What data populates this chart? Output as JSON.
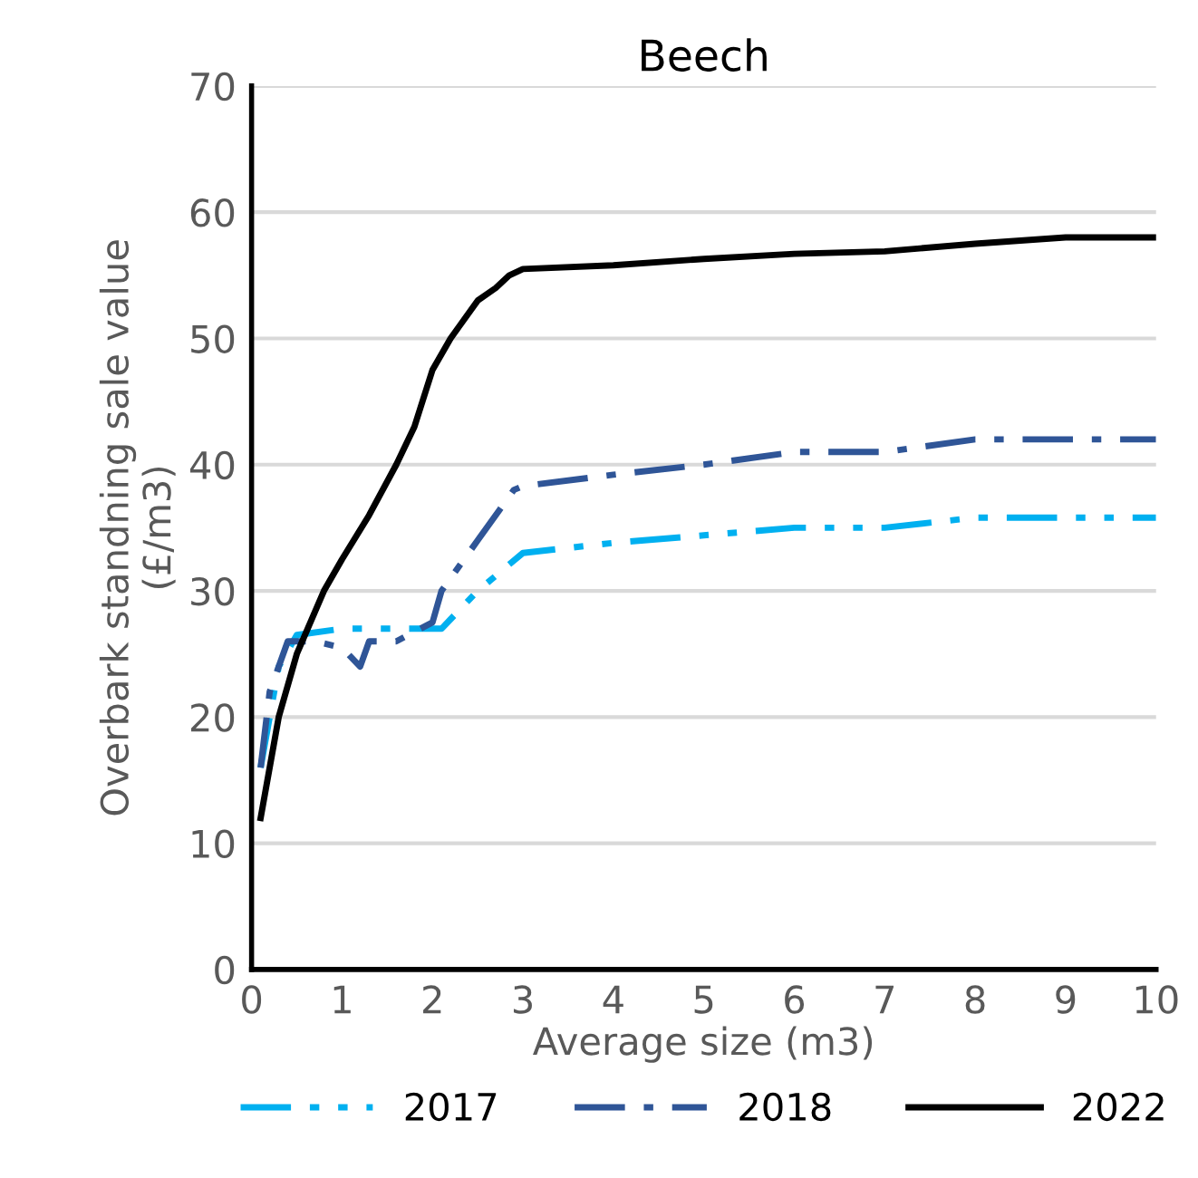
{
  "chart_data": {
    "type": "line",
    "title": "Beech",
    "xlabel": "Average size (m3)",
    "ylabel": "Overbark standning sale value\n(£/m3)",
    "xlim": [
      0,
      10
    ],
    "xticks": [
      0,
      1,
      2,
      3,
      4,
      5,
      6,
      7,
      8,
      9,
      10
    ],
    "ylim": [
      0,
      70
    ],
    "yticks": [
      0,
      10,
      20,
      30,
      40,
      50,
      60,
      70
    ],
    "grid": "y",
    "legend": "bottom",
    "marker": "none",
    "series": [
      {
        "name": "2017",
        "color": "#00b0f0",
        "line_style": "dashdotdot",
        "x": [
          0.1,
          0.3,
          0.5,
          1,
          1.5,
          2,
          2.1,
          2.5,
          3,
          4,
          5,
          6,
          7,
          8,
          9,
          10
        ],
        "values": [
          16,
          24,
          26.5,
          27,
          27,
          27,
          27,
          30,
          33,
          33.8,
          34.4,
          35,
          35,
          35.8,
          35.8,
          35.8
        ]
      },
      {
        "name": "2018",
        "color": "#2f5597",
        "line_style": "dashdot",
        "x": [
          0.1,
          0.2,
          0.4,
          0.7,
          1,
          1.2,
          1.3,
          1.6,
          2,
          2.1,
          2.5,
          2.9,
          3,
          4,
          5,
          6,
          7,
          8,
          9,
          10
        ],
        "values": [
          16,
          22,
          26,
          26,
          25.5,
          24,
          26,
          26,
          27.5,
          30,
          34,
          38,
          38.3,
          39.2,
          40,
          41,
          41,
          42,
          42,
          42
        ]
      },
      {
        "name": "2022",
        "color": "#000000",
        "line_style": "solid",
        "x": [
          0.1,
          0.3,
          0.5,
          0.8,
          1,
          1.3,
          1.6,
          1.8,
          2,
          2.2,
          2.5,
          2.7,
          2.85,
          3,
          4,
          5,
          6,
          7,
          8,
          9,
          10
        ],
        "values": [
          12,
          20,
          25,
          30,
          32.5,
          36,
          40,
          43,
          47.5,
          50,
          53,
          54,
          55,
          55.5,
          55.8,
          56.3,
          56.7,
          56.9,
          57.5,
          58,
          58
        ]
      }
    ]
  }
}
